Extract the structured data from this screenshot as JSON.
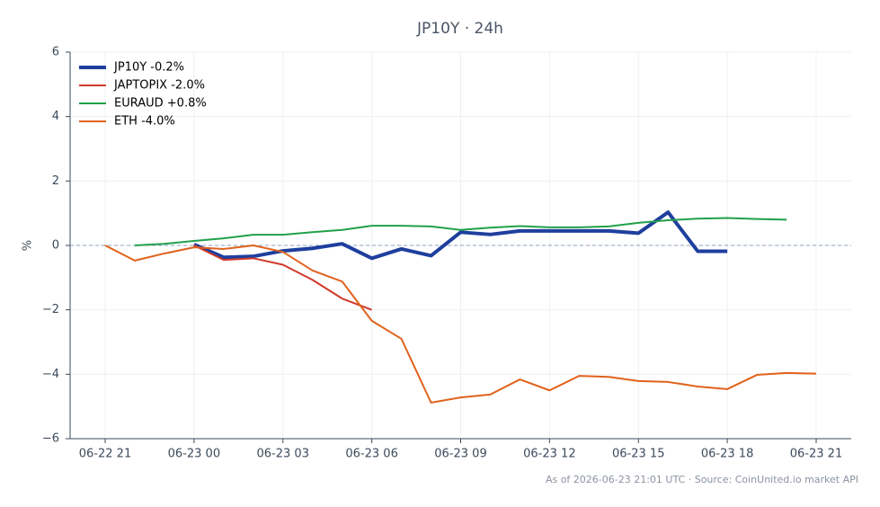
{
  "chart_data": {
    "type": "line",
    "title": "JP10Y · 24h",
    "y_label": "%",
    "footer": "As of 2026-06-23 21:01 UTC · Source: CoinUnited.io market API",
    "categories": [
      "06-22 21",
      null,
      null,
      "06-23 00",
      null,
      null,
      "06-23 03",
      null,
      null,
      "06-23 06",
      null,
      null,
      "06-23 09",
      null,
      null,
      "06-23 12",
      null,
      null,
      "06-23 15",
      null,
      null,
      "06-23 18",
      null,
      null,
      "06-23 21"
    ],
    "ylim": [
      -6,
      6
    ],
    "yticks": [
      {
        "value": -6,
        "label": "−6"
      },
      {
        "value": -4,
        "label": "−4"
      },
      {
        "value": -2,
        "label": "−2"
      },
      0,
      2,
      4,
      6
    ],
    "grid": true,
    "zero_line": true,
    "legend": "upper left",
    "series": [
      {
        "name": "JP10Y -0.2%",
        "color": "#1f3f9e",
        "width": 4,
        "values": [
          null,
          null,
          null,
          0.03,
          -0.37,
          -0.34,
          -0.17,
          -0.09,
          0.05,
          -0.4,
          -0.11,
          -0.32,
          0.41,
          0.34,
          0.45,
          0.45,
          0.45,
          0.45,
          0.38,
          1.03,
          -0.18,
          -0.18,
          null,
          null,
          null
        ]
      },
      {
        "name": "JAPTOPIX -2.0%",
        "color": "#d03a2a",
        "width": 2,
        "values": [
          null,
          null,
          null,
          0,
          -0.45,
          -0.4,
          -0.6,
          -1.07,
          -1.65,
          -2.0,
          null,
          null,
          null,
          null,
          null,
          null,
          null,
          null,
          null,
          null,
          null,
          null,
          null,
          null,
          null
        ]
      },
      {
        "name": "EURAUD +0.8%",
        "color": "#21a04a",
        "width": 2,
        "values": [
          null,
          0,
          0.05,
          0.14,
          0.22,
          0.33,
          0.33,
          0.41,
          0.48,
          0.61,
          0.61,
          0.59,
          0.48,
          0.55,
          0.6,
          0.56,
          0.56,
          0.59,
          0.7,
          0.78,
          0.83,
          0.85,
          0.82,
          0.8,
          null
        ]
      },
      {
        "name": "ETH -4.0%",
        "color": "#e0621c",
        "width": 2,
        "values": [
          0,
          -0.47,
          -0.25,
          -0.06,
          -0.11,
          0,
          -0.2,
          -0.78,
          -1.12,
          -2.34,
          -2.9,
          -4.88,
          -4.72,
          -4.63,
          -4.16,
          -4.5,
          -4.05,
          -4.08,
          -4.21,
          -4.24,
          -4.38,
          -4.46,
          -4.02,
          -3.96,
          -3.98
        ]
      }
    ]
  }
}
